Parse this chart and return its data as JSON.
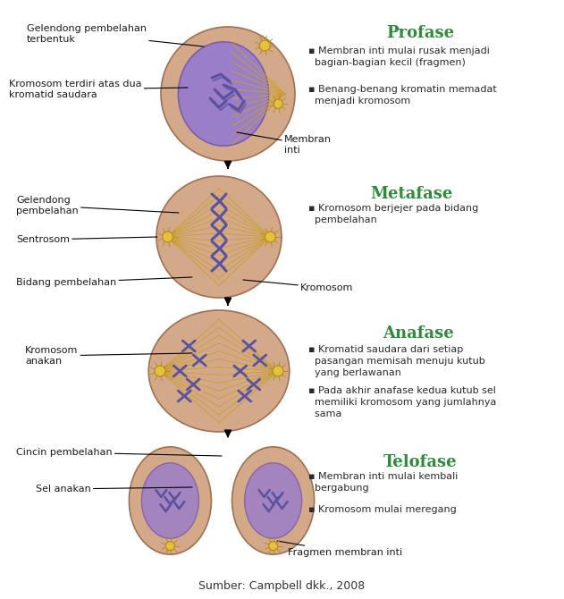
{
  "background_color": "#ffffff",
  "figsize": [
    6.31,
    6.7
  ],
  "dpi": 100,
  "source_text": "Sumber: Campbell dkk., 2008",
  "stage_titles": [
    "Profase",
    "Metafase",
    "Anafase",
    "Telofase"
  ],
  "stage_title_color": "#2e8b3a",
  "cell_color": "#d4a98a",
  "nucleus_color": "#9b7ec8",
  "nucleus_edge": "#7a5fa8",
  "chromosome_color": "#5a52a0",
  "spindle_color": "#c9a030",
  "centrosome_color": "#e8c040",
  "centrosome_edge": "#b89020",
  "label_fontsize": 8,
  "stage_title_fontsize": 13,
  "bullet_fontsize": 8,
  "bullet_color": "#2a2a2a",
  "label_color": "#1a1a1a"
}
